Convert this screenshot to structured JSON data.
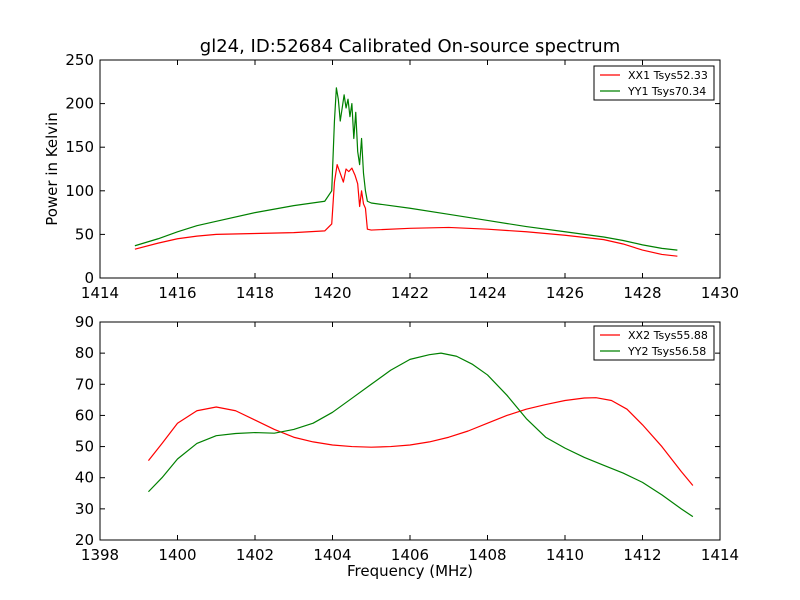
{
  "chart_data": [
    {
      "type": "line",
      "title": "gl24, ID:52684 Calibrated On-source spectrum",
      "xlabel": "",
      "ylabel": "Power in Kelvin",
      "xlim": [
        1414,
        1430
      ],
      "ylim": [
        0,
        250
      ],
      "xticks": [
        "1414",
        "1416",
        "1418",
        "1420",
        "1422",
        "1424",
        "1426",
        "1428",
        "1430"
      ],
      "yticks": [
        "0",
        "50",
        "100",
        "150",
        "200",
        "250"
      ],
      "grid": false,
      "legend_position": "top-right",
      "series": [
        {
          "name": "XX1 Tsys52.33",
          "color": "#ff0000",
          "x": [
            1414.9,
            1415.5,
            1416.0,
            1416.5,
            1417.0,
            1418.0,
            1419.0,
            1419.8,
            1419.98,
            1420.05,
            1420.12,
            1420.2,
            1420.28,
            1420.35,
            1420.42,
            1420.5,
            1420.58,
            1420.65,
            1420.7,
            1420.75,
            1420.8,
            1420.85,
            1420.9,
            1421.0,
            1422.0,
            1423.0,
            1424.0,
            1425.0,
            1426.0,
            1427.0,
            1427.5,
            1428.0,
            1428.5,
            1428.9
          ],
          "y": [
            33,
            40,
            45,
            48,
            50,
            51,
            52,
            54,
            62,
            110,
            130,
            120,
            110,
            125,
            122,
            126,
            118,
            108,
            82,
            100,
            85,
            80,
            56,
            55,
            57,
            58,
            56,
            53,
            49,
            44,
            39,
            32,
            27,
            25
          ]
        },
        {
          "name": "YY1 Tsys70.34",
          "color": "#008000",
          "x": [
            1414.9,
            1415.5,
            1416.0,
            1416.5,
            1417.0,
            1418.0,
            1419.0,
            1419.8,
            1419.98,
            1420.05,
            1420.1,
            1420.15,
            1420.2,
            1420.25,
            1420.3,
            1420.35,
            1420.4,
            1420.45,
            1420.5,
            1420.55,
            1420.6,
            1420.65,
            1420.7,
            1420.75,
            1420.8,
            1420.85,
            1420.9,
            1421.0,
            1422.0,
            1423.0,
            1424.0,
            1425.0,
            1426.0,
            1427.0,
            1427.5,
            1428.0,
            1428.5,
            1428.9
          ],
          "y": [
            37,
            45,
            53,
            60,
            65,
            75,
            83,
            88,
            100,
            180,
            218,
            205,
            180,
            195,
            210,
            195,
            205,
            185,
            200,
            160,
            190,
            145,
            130,
            160,
            120,
            100,
            88,
            86,
            80,
            73,
            66,
            59,
            53,
            47,
            43,
            38,
            34,
            32
          ]
        }
      ]
    },
    {
      "type": "line",
      "title": "",
      "xlabel": "Frequency (MHz)",
      "ylabel": "",
      "xlim": [
        1398,
        1414
      ],
      "ylim": [
        20,
        90
      ],
      "xticks": [
        "1398",
        "1400",
        "1402",
        "1404",
        "1406",
        "1408",
        "1410",
        "1412",
        "1414"
      ],
      "yticks": [
        "20",
        "30",
        "40",
        "50",
        "60",
        "70",
        "80",
        "90"
      ],
      "grid": false,
      "legend_position": "top-right",
      "series": [
        {
          "name": "XX2 Tsys55.88",
          "color": "#ff0000",
          "x": [
            1399.25,
            1399.6,
            1400.0,
            1400.5,
            1401.0,
            1401.5,
            1402.0,
            1402.5,
            1403.0,
            1403.5,
            1404.0,
            1404.5,
            1405.0,
            1405.5,
            1406.0,
            1406.5,
            1407.0,
            1407.5,
            1408.0,
            1408.5,
            1409.0,
            1409.5,
            1410.0,
            1410.5,
            1410.8,
            1411.2,
            1411.6,
            1412.0,
            1412.5,
            1413.0,
            1413.3
          ],
          "y": [
            45.5,
            51,
            57.5,
            61.5,
            62.7,
            61.5,
            58.5,
            55.5,
            53,
            51.5,
            50.5,
            50,
            49.8,
            50,
            50.5,
            51.5,
            53,
            55,
            57.5,
            60,
            62,
            63.5,
            64.8,
            65.6,
            65.7,
            64.8,
            62,
            57,
            50,
            42,
            37.5
          ]
        },
        {
          "name": "YY2 Tsys56.58",
          "color": "#008000",
          "x": [
            1399.25,
            1399.6,
            1400.0,
            1400.5,
            1401.0,
            1401.5,
            1402.0,
            1402.5,
            1403.0,
            1403.5,
            1404.0,
            1404.5,
            1405.0,
            1405.5,
            1406.0,
            1406.5,
            1406.8,
            1407.2,
            1407.6,
            1408.0,
            1408.5,
            1409.0,
            1409.5,
            1410.0,
            1410.5,
            1411.0,
            1411.5,
            1412.0,
            1412.5,
            1413.0,
            1413.3
          ],
          "y": [
            35.5,
            40,
            46,
            51,
            53.5,
            54.2,
            54.5,
            54.3,
            55.5,
            57.5,
            61,
            65.5,
            70,
            74.5,
            78,
            79.5,
            80,
            79,
            76.5,
            73,
            66.5,
            59,
            53,
            49.5,
            46.5,
            44,
            41.5,
            38.5,
            34.5,
            30,
            27.5
          ]
        }
      ]
    }
  ]
}
